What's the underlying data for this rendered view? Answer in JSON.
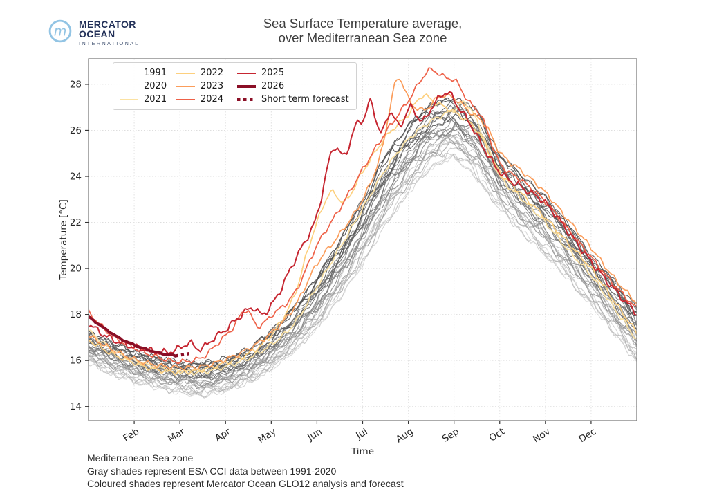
{
  "branding": {
    "line1": "MERCATOR",
    "line2": "OCEAN",
    "line3": "INTERNATIONAL",
    "logo_circle_color": "#92c4e4",
    "text_color": "#223058"
  },
  "title": {
    "line1": "Sea Surface Temperature average,",
    "line2": "over Mediterranean Sea zone"
  },
  "legend": {
    "items": [
      {
        "label": "1991",
        "color": "#dcdcdc",
        "thickness": 1.5,
        "style": "solid"
      },
      {
        "label": "2020",
        "color": "#4d4d4d",
        "thickness": 1.5,
        "style": "solid"
      },
      {
        "label": "2021",
        "color": "#fbe2a2",
        "thickness": 2,
        "style": "solid"
      },
      {
        "label": "2022",
        "color": "#fdd07e",
        "thickness": 2,
        "style": "solid"
      },
      {
        "label": "2023",
        "color": "#fb9d5b",
        "thickness": 2,
        "style": "solid"
      },
      {
        "label": "2024",
        "color": "#ee6148",
        "thickness": 2,
        "style": "solid"
      },
      {
        "label": "2025",
        "color": "#c62631",
        "thickness": 2,
        "style": "solid"
      },
      {
        "label": "2026",
        "color": "#8b0f26",
        "thickness": 4,
        "style": "solid"
      },
      {
        "label": "Short term forecast",
        "color": "#8b0f26",
        "thickness": 4,
        "style": "dotted"
      }
    ]
  },
  "footnotes": [
    "Mediterranean Sea zone",
    "Gray shades represent ESA CCI data between 1991-2020",
    "Coloured shades represent Mercator Ocean GLO12 analysis and forecast"
  ],
  "chart_data": {
    "type": "line",
    "title": "Sea Surface Temperature average, over Mediterranean Sea zone",
    "xlabel": "Time",
    "ylabel": "Temperature [°C]",
    "x_unit": "month fraction, 0 = Jan 1, 12 = Dec 31",
    "xlim": [
      0,
      12
    ],
    "ylim": [
      13.39,
      29.11
    ],
    "x_ticks": [
      "Feb",
      "Mar",
      "Apr",
      "May",
      "Jun",
      "Jul",
      "Aug",
      "Sep",
      "Oct",
      "Nov",
      "Dec"
    ],
    "y_ticks": [
      14,
      16,
      18,
      20,
      22,
      24,
      26,
      28
    ],
    "grid": true,
    "legend_position": "upper-left",
    "gray_ensemble": {
      "description": "ESA CCI yearly SST curves 1991-2020, light=1991 dark=2020",
      "year_start": 1991,
      "year_end": 2020,
      "count": 30,
      "color_start": "#dbdbdb",
      "color_end": "#4e4e4e",
      "x": [
        0,
        0.5,
        1,
        1.5,
        2,
        2.5,
        3,
        3.5,
        4,
        4.5,
        5,
        5.5,
        6,
        6.5,
        7,
        7.5,
        8,
        8.5,
        9,
        9.5,
        10,
        10.5,
        11,
        11.5,
        12
      ],
      "env_min": [
        15.9,
        15.4,
        15.1,
        14.8,
        14.6,
        14.45,
        14.65,
        15.0,
        15.6,
        16.4,
        17.4,
        18.7,
        20.2,
        21.9,
        23.3,
        24.4,
        24.9,
        23.9,
        22.6,
        21.5,
        20.6,
        19.5,
        18.4,
        17.2,
        15.9
      ],
      "env_max": [
        17.2,
        16.8,
        16.4,
        16.1,
        15.95,
        15.9,
        16.1,
        16.5,
        17.3,
        18.3,
        19.6,
        21.2,
        23.0,
        24.9,
        26.2,
        27.1,
        27.4,
        26.9,
        24.9,
        24.0,
        23.1,
        21.9,
        20.6,
        19.5,
        18.3
      ]
    },
    "series": [
      {
        "name": "2021",
        "color": "#fbe2a2",
        "width": 1.7,
        "points": [
          [
            0,
            17.3
          ],
          [
            0.5,
            16.5
          ],
          [
            1,
            16.0
          ],
          [
            1.5,
            15.7
          ],
          [
            2,
            15.55
          ],
          [
            2.5,
            15.5
          ],
          [
            3,
            15.75
          ],
          [
            3.5,
            16.1
          ],
          [
            4,
            16.7
          ],
          [
            4.5,
            17.6
          ],
          [
            5,
            19.2
          ],
          [
            5.5,
            20.9
          ],
          [
            6,
            22.6
          ],
          [
            6.5,
            24.3
          ],
          [
            7,
            25.6
          ],
          [
            7.5,
            26.4
          ],
          [
            8,
            26.9
          ],
          [
            8.25,
            27.2
          ],
          [
            8.5,
            26.4
          ],
          [
            8.75,
            25.2
          ],
          [
            9,
            24.0
          ],
          [
            9.5,
            23.0
          ],
          [
            10,
            22.0
          ],
          [
            10.5,
            20.8
          ],
          [
            11,
            19.7
          ],
          [
            11.5,
            18.3
          ],
          [
            12,
            16.9
          ]
        ]
      },
      {
        "name": "2022",
        "color": "#fdd07e",
        "width": 1.7,
        "points": [
          [
            0,
            16.9
          ],
          [
            0.5,
            16.3
          ],
          [
            1,
            15.9
          ],
          [
            1.5,
            15.6
          ],
          [
            2,
            15.5
          ],
          [
            2.5,
            15.6
          ],
          [
            3,
            15.9
          ],
          [
            3.5,
            16.3
          ],
          [
            4,
            17.1
          ],
          [
            4.5,
            18.8
          ],
          [
            4.8,
            20.8
          ],
          [
            5,
            22.0
          ],
          [
            5.3,
            23.3
          ],
          [
            5.6,
            22.9
          ],
          [
            6,
            24.2
          ],
          [
            6.5,
            25.7
          ],
          [
            7,
            26.7
          ],
          [
            7.3,
            27.5
          ],
          [
            7.6,
            27.2
          ],
          [
            8,
            26.8
          ],
          [
            8.5,
            26.0
          ],
          [
            9,
            24.2
          ],
          [
            9.5,
            23.2
          ],
          [
            10,
            22.2
          ],
          [
            10.5,
            21.1
          ],
          [
            11,
            20.0
          ],
          [
            11.5,
            18.6
          ],
          [
            12,
            17.2
          ]
        ]
      },
      {
        "name": "2023",
        "color": "#fb9d5b",
        "width": 1.7,
        "points": [
          [
            0,
            17.1
          ],
          [
            0.5,
            16.5
          ],
          [
            1,
            16.05
          ],
          [
            1.5,
            15.8
          ],
          [
            2,
            15.7
          ],
          [
            2.5,
            15.75
          ],
          [
            3,
            16.05
          ],
          [
            3.5,
            16.5
          ],
          [
            4,
            17.2
          ],
          [
            4.5,
            18.3
          ],
          [
            5,
            20.2
          ],
          [
            5.5,
            21.5
          ],
          [
            6,
            23.0
          ],
          [
            6.4,
            25.0
          ],
          [
            6.75,
            28.2
          ],
          [
            7.05,
            27.2
          ],
          [
            7.35,
            26.9
          ],
          [
            7.7,
            27.5
          ],
          [
            8,
            27.4
          ],
          [
            8.35,
            26.8
          ],
          [
            8.7,
            26.2
          ],
          [
            9,
            25.05
          ],
          [
            9.5,
            24.2
          ],
          [
            10,
            23.3
          ],
          [
            10.5,
            22.1
          ],
          [
            11,
            20.9
          ],
          [
            11.5,
            19.6
          ],
          [
            12,
            18.5
          ]
        ]
      },
      {
        "name": "2024",
        "color": "#ee6148",
        "width": 1.7,
        "points": [
          [
            0,
            18.1
          ],
          [
            0.5,
            17.1
          ],
          [
            1,
            16.55
          ],
          [
            1.5,
            16.15
          ],
          [
            2,
            15.95
          ],
          [
            2.5,
            16.15
          ],
          [
            2.8,
            16.7
          ],
          [
            3.15,
            17.4
          ],
          [
            3.45,
            18.2
          ],
          [
            3.7,
            17.5
          ],
          [
            4,
            17.95
          ],
          [
            4.5,
            18.9
          ],
          [
            5,
            21.0
          ],
          [
            5.5,
            22.6
          ],
          [
            6,
            24.3
          ],
          [
            6.5,
            25.9
          ],
          [
            7,
            27.3
          ],
          [
            7.45,
            28.6
          ],
          [
            7.75,
            28.35
          ],
          [
            8.05,
            28.1
          ],
          [
            8.3,
            27.3
          ],
          [
            8.6,
            26.6
          ],
          [
            9,
            24.6
          ],
          [
            9.5,
            23.8
          ],
          [
            10,
            22.9
          ],
          [
            10.5,
            21.7
          ],
          [
            11,
            20.5
          ],
          [
            11.5,
            19.3
          ],
          [
            12,
            18.25
          ]
        ]
      },
      {
        "name": "2025",
        "color": "#c62631",
        "width": 2.0,
        "points": [
          [
            0,
            17.6
          ],
          [
            0.4,
            17.05
          ],
          [
            0.8,
            16.7
          ],
          [
            1.2,
            16.5
          ],
          [
            1.6,
            16.35
          ],
          [
            1.9,
            16.45
          ],
          [
            2.2,
            16.75
          ],
          [
            2.45,
            16.5
          ],
          [
            2.7,
            16.9
          ],
          [
            3,
            17.35
          ],
          [
            3.3,
            17.9
          ],
          [
            3.6,
            18.3
          ],
          [
            3.8,
            18.0
          ],
          [
            4.1,
            18.7
          ],
          [
            4.5,
            20.3
          ],
          [
            4.8,
            21.4
          ],
          [
            5,
            22.3
          ],
          [
            5.35,
            25.2
          ],
          [
            5.6,
            24.9
          ],
          [
            5.85,
            26.2
          ],
          [
            6.05,
            26.6
          ],
          [
            6.17,
            27.25
          ],
          [
            6.4,
            25.9
          ],
          [
            6.6,
            26.8
          ],
          [
            6.8,
            26.2
          ],
          [
            7.05,
            27.0
          ],
          [
            7.3,
            26.4
          ],
          [
            7.55,
            27.1
          ],
          [
            7.85,
            27.65
          ],
          [
            8.1,
            27.0
          ],
          [
            8.35,
            26.3
          ],
          [
            8.6,
            25.4
          ],
          [
            9,
            24.2
          ],
          [
            9.5,
            23.5
          ],
          [
            10,
            22.85
          ],
          [
            10.5,
            21.6
          ],
          [
            11,
            20.3
          ],
          [
            11.5,
            19.1
          ],
          [
            12,
            18.05
          ]
        ]
      },
      {
        "name": "2026",
        "color": "#8b0f26",
        "width": 4.0,
        "points": [
          [
            0,
            17.9
          ],
          [
            0.35,
            17.4
          ],
          [
            0.7,
            16.95
          ],
          [
            1.1,
            16.6
          ],
          [
            1.5,
            16.35
          ],
          [
            1.9,
            16.2
          ]
        ]
      },
      {
        "name": "Short term forecast",
        "color": "#8b0f26",
        "width": 4.4,
        "style": "dotted",
        "points": [
          [
            1.9,
            16.2
          ],
          [
            2.2,
            16.3
          ]
        ]
      }
    ]
  }
}
